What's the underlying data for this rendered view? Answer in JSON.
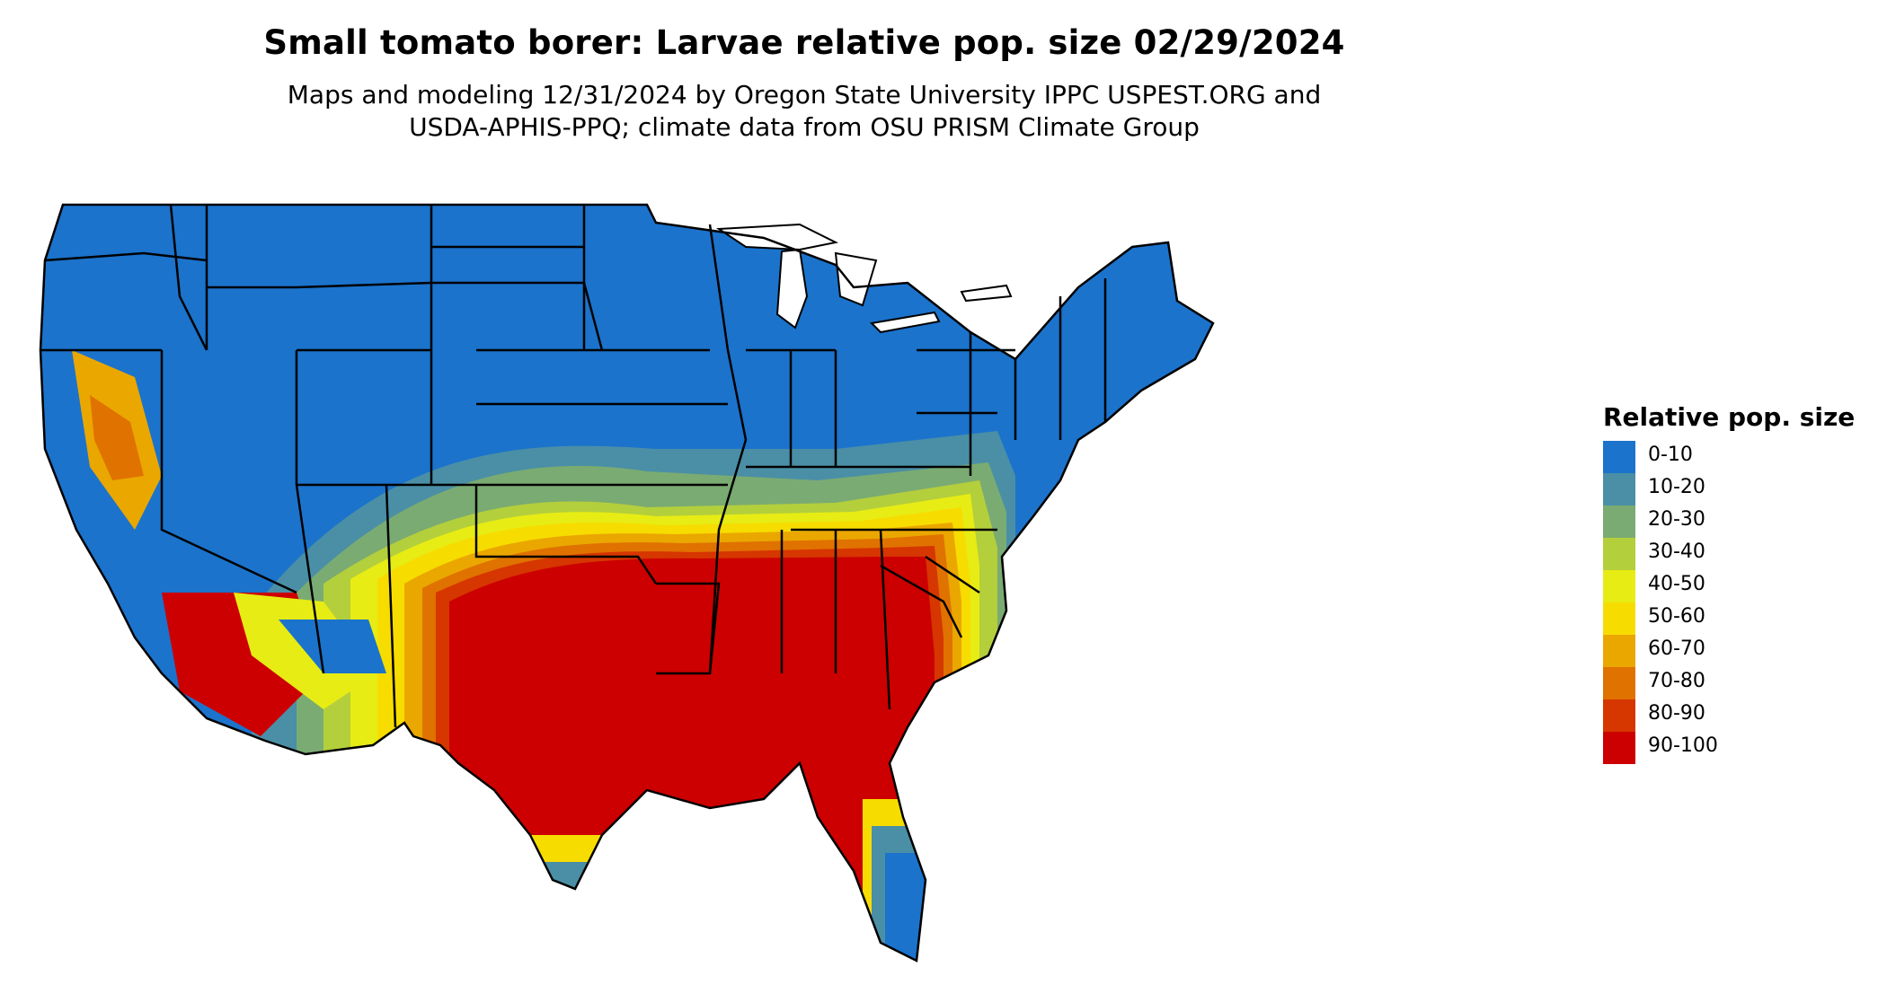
{
  "title": "Small tomato borer: Larvae relative pop. size 02/29/2024",
  "subtitle_line1": "Maps and modeling 12/31/2024 by Oregon State University IPPC USPEST.ORG and",
  "subtitle_line2": "USDA-APHIS-PPQ; climate data from OSU PRISM Climate Group",
  "legend": {
    "title": "Relative pop. size",
    "items": [
      {
        "label": "0-10",
        "color": "#1b73cc"
      },
      {
        "label": "10-20",
        "color": "#4a8fa6"
      },
      {
        "label": "20-30",
        "color": "#7aab72"
      },
      {
        "label": "30-40",
        "color": "#b4cf3c"
      },
      {
        "label": "40-50",
        "color": "#e7ec14"
      },
      {
        "label": "50-60",
        "color": "#f7dc00"
      },
      {
        "label": "60-70",
        "color": "#eaa700"
      },
      {
        "label": "70-80",
        "color": "#e07200"
      },
      {
        "label": "80-90",
        "color": "#d63600"
      },
      {
        "label": "90-100",
        "color": "#cc0000"
      }
    ]
  },
  "map": {
    "region": "Contiguous United States",
    "state_border_color": "#000000",
    "water_color": "#ffffff"
  }
}
